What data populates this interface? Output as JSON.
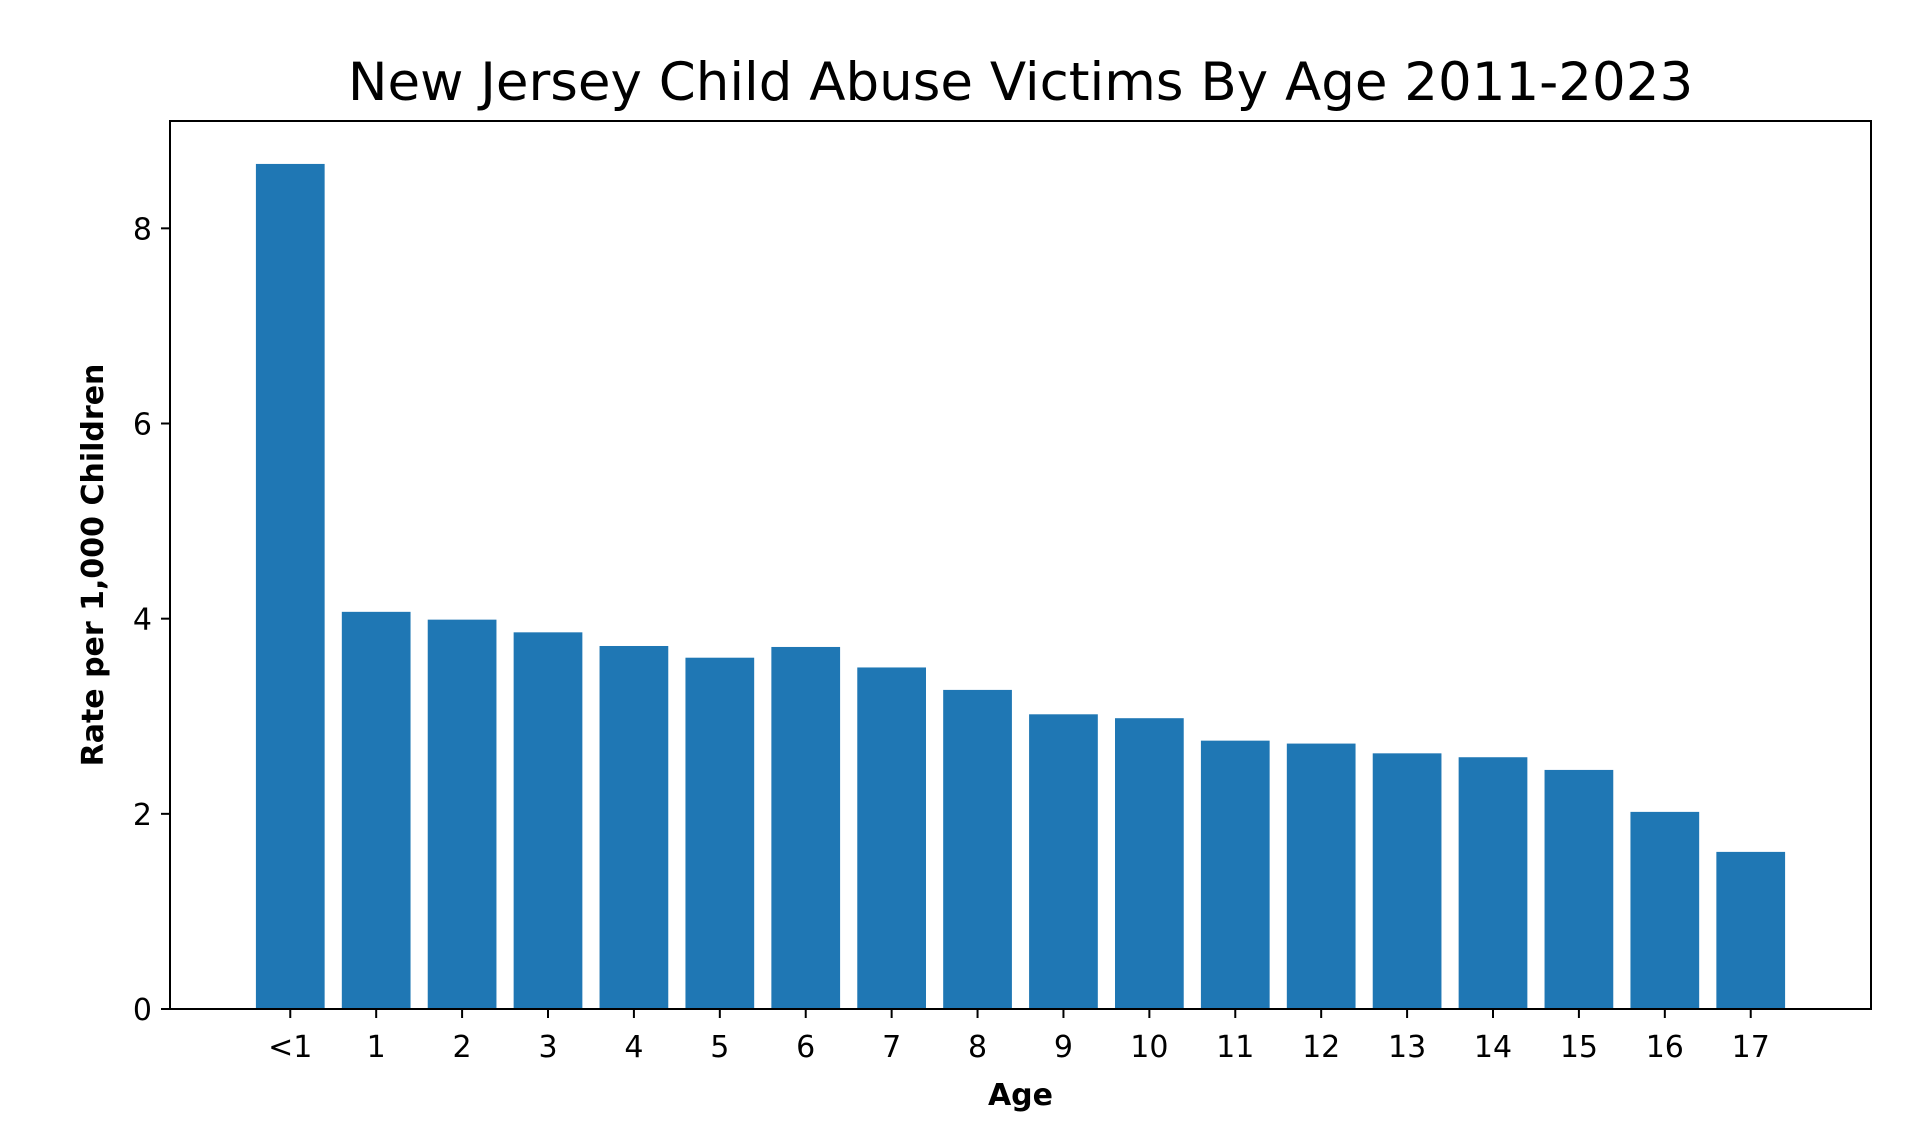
{
  "chart_data": {
    "type": "bar",
    "title": "New Jersey Child Abuse Victims By Age 2011-2023",
    "xlabel": "Age",
    "ylabel": "Rate per 1,000 Children",
    "categories": [
      "<1",
      "1",
      "2",
      "3",
      "4",
      "5",
      "6",
      "7",
      "8",
      "9",
      "10",
      "11",
      "12",
      "13",
      "14",
      "15",
      "16",
      "17"
    ],
    "values": [
      8.66,
      4.07,
      3.99,
      3.86,
      3.72,
      3.6,
      3.71,
      3.5,
      3.27,
      3.02,
      2.98,
      2.75,
      2.72,
      2.62,
      2.58,
      2.45,
      2.02,
      1.61
    ],
    "ylim": [
      0,
      9.1
    ],
    "yticks": [
      0,
      2,
      4,
      6,
      8
    ],
    "bar_color": "#1f77b4",
    "grid": false,
    "legend": "none"
  }
}
